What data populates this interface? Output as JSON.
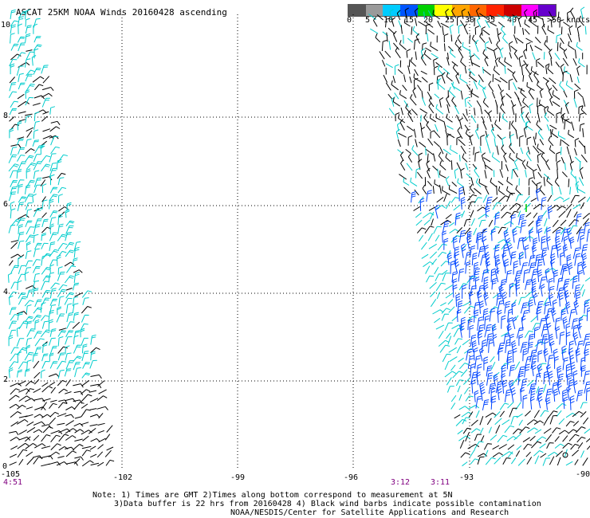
{
  "title": "ASCAT 25KM NOAA Winds 20160428 ascending",
  "legend": {
    "labels": [
      "0",
      "5",
      "10",
      "15",
      "20",
      "25",
      "30",
      "35",
      "40",
      "45",
      ">50 knots"
    ],
    "colors": [
      "#555555",
      "#9a9a9a",
      "#00ccff",
      "#0055ff",
      "#00d100",
      "#ffff00",
      "#ffa500",
      "#ff6600",
      "#ff2200",
      "#cc0000",
      "#ff00ff",
      "#6600cc"
    ]
  },
  "axes": {
    "x_ticks": [
      "-105",
      "-102",
      "-99",
      "-96",
      "-93",
      "-90"
    ],
    "y_ticks": [
      "0",
      "2",
      "4",
      "6",
      "8",
      "10"
    ]
  },
  "times": {
    "t1": "4:51",
    "t2": "3:12",
    "t3": "3:11"
  },
  "notes": {
    "line1": "Note: 1) Times are GMT 2)Times along bottom correspond to measurement at 5N",
    "line2": "3)Data buffer is 22 hrs from 20160428 4) Black wind barbs indicate possible contamination",
    "line3": "NOAA/NESDIS/Center for Satellite Applications and Research"
  },
  "swath_colors": {
    "contaminated": "#000000",
    "light": "#00cccc",
    "strong": "#0044ff",
    "marker": "#00cc00"
  }
}
